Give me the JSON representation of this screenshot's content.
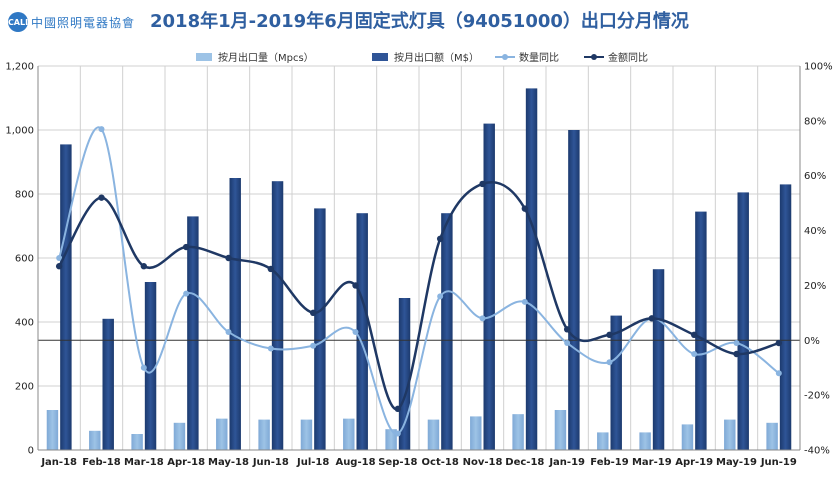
{
  "header": {
    "logo_text": "中國照明電器協會",
    "logo_badge": "CALI"
  },
  "chart_data": {
    "type": "bar",
    "title": "2018年1月-2019年6月固定式灯具（94051000）出口分月情况",
    "categories": [
      "Jan-18",
      "Feb-18",
      "Mar-18",
      "Apr-18",
      "May-18",
      "Jun-18",
      "Jul-18",
      "Aug-18",
      "Sep-18",
      "Oct-18",
      "Nov-18",
      "Dec-18",
      "Jan-19",
      "Feb-19",
      "Mar-19",
      "Apr-19",
      "May-19",
      "Jun-19"
    ],
    "y_left": {
      "ylim": [
        0,
        1200
      ],
      "ticks": [
        "0",
        "200",
        "400",
        "600",
        "800",
        "1,000",
        "1,200"
      ]
    },
    "y_right": {
      "ylim": [
        -40,
        100
      ],
      "ticks": [
        "-40%",
        "-20%",
        "0%",
        "20%",
        "40%",
        "60%",
        "80%",
        "100%"
      ]
    },
    "grid": true,
    "legend_position": "top",
    "series": [
      {
        "name": "按月出口量（Mpcs）",
        "type": "bar",
        "axis": "left",
        "color": "#9dc3e6",
        "values": [
          125,
          60,
          50,
          85,
          98,
          95,
          95,
          98,
          65,
          95,
          105,
          112,
          125,
          55,
          55,
          80,
          95,
          85
        ]
      },
      {
        "name": "按月出口额（M$）",
        "type": "bar",
        "axis": "left",
        "color": "#2f5597",
        "values": [
          955,
          410,
          525,
          730,
          850,
          840,
          755,
          740,
          475,
          740,
          1020,
          1130,
          1000,
          420,
          565,
          745,
          805,
          830
        ]
      },
      {
        "name": "数量同比",
        "type": "line",
        "axis": "right",
        "color": "#8ab4e0",
        "values": [
          30,
          77,
          -10,
          17,
          3,
          -3,
          -2,
          3,
          -34,
          16,
          8,
          14,
          -1,
          -8,
          8,
          -5,
          -1,
          -12
        ]
      },
      {
        "name": "金额同比",
        "type": "line",
        "axis": "right",
        "color": "#1f3864",
        "values": [
          27,
          52,
          27,
          34,
          30,
          26,
          10,
          20,
          -25,
          37,
          57,
          48,
          4,
          2,
          8,
          2,
          -5,
          -1
        ]
      }
    ]
  }
}
